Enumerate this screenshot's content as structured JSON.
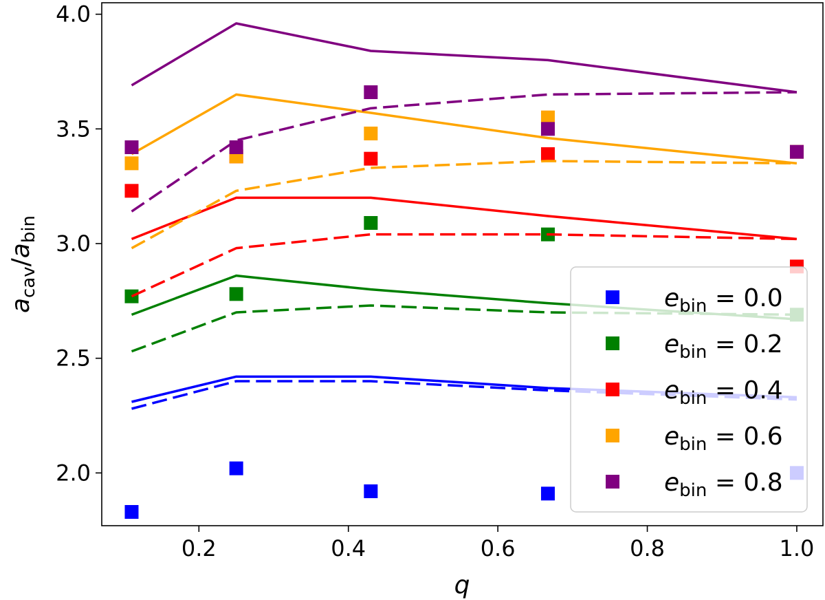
{
  "chart_data": {
    "type": "line",
    "title": "",
    "xlabel": "q",
    "ylabel": {
      "main": "a",
      "sub_num": "cav",
      "sep": "/",
      "main2": "a",
      "sub_den": "bin"
    },
    "xlim": [
      0.07,
      1.035
    ],
    "ylim": [
      1.77,
      4.05
    ],
    "xticks": [
      0.2,
      0.4,
      0.6,
      0.8,
      1.0
    ],
    "xtick_labels": [
      "0.2",
      "0.4",
      "0.6",
      "0.8",
      "1.0"
    ],
    "yticks": [
      2.0,
      2.5,
      3.0,
      3.5,
      4.0
    ],
    "ytick_labels": [
      "2.0",
      "2.5",
      "3.0",
      "3.5",
      "4.0"
    ],
    "x": [
      0.11,
      0.25,
      0.43,
      0.667,
      1.0
    ],
    "legend_position": "lower-right",
    "series": [
      {
        "name": "e_bin = 0.0",
        "legend_main": "e",
        "legend_sub": "bin",
        "legend_value": " = 0.0",
        "color": "#0000ff",
        "solid": [
          2.31,
          2.42,
          2.42,
          2.37,
          2.33
        ],
        "dashed": [
          2.28,
          2.4,
          2.4,
          2.36,
          2.32
        ],
        "points": [
          1.83,
          2.02,
          1.92,
          1.91,
          2.0
        ]
      },
      {
        "name": "e_bin = 0.2",
        "legend_main": "e",
        "legend_sub": "bin",
        "legend_value": " = 0.2",
        "color": "#008000",
        "solid": [
          2.69,
          2.86,
          2.8,
          2.74,
          2.67
        ],
        "dashed": [
          2.53,
          2.7,
          2.73,
          2.7,
          2.69
        ],
        "points": [
          2.77,
          2.78,
          3.09,
          3.04,
          2.69
        ]
      },
      {
        "name": "e_bin = 0.4",
        "legend_main": "e",
        "legend_sub": "bin",
        "legend_value": " = 0.4",
        "color": "#ff0000",
        "solid": [
          3.02,
          3.2,
          3.2,
          3.12,
          3.02
        ],
        "dashed": [
          2.77,
          2.98,
          3.04,
          3.04,
          3.02
        ],
        "points": [
          3.23,
          3.38,
          3.37,
          3.39,
          2.9
        ]
      },
      {
        "name": "e_bin = 0.6",
        "legend_main": "e",
        "legend_sub": "bin",
        "legend_value": " = 0.6",
        "color": "#ffa500",
        "solid": [
          3.39,
          3.65,
          3.57,
          3.46,
          3.35
        ],
        "dashed": [
          2.98,
          3.23,
          3.33,
          3.36,
          3.35
        ],
        "points": [
          3.35,
          3.38,
          3.48,
          3.55,
          3.4
        ]
      },
      {
        "name": "e_bin = 0.8",
        "legend_main": "e",
        "legend_sub": "bin",
        "legend_value": " = 0.8",
        "color": "#800080",
        "solid": [
          3.69,
          3.96,
          3.84,
          3.8,
          3.66
        ],
        "dashed": [
          3.14,
          3.45,
          3.59,
          3.65,
          3.66
        ],
        "points": [
          3.42,
          3.42,
          3.66,
          3.5,
          3.4
        ]
      }
    ]
  }
}
